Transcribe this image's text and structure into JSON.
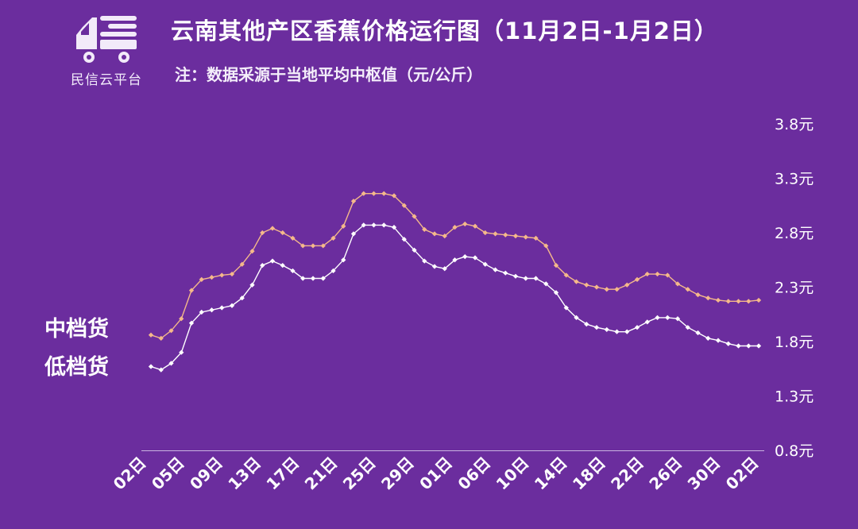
{
  "header": {
    "title": "云南其他产区香蕉价格运行图（11月2日-1月2日）",
    "subtitle": "注：数据采源于当地平均中枢值（元/公斤）"
  },
  "logo": {
    "text": "民信云平台",
    "icon": "truck-icon"
  },
  "colors": {
    "background": "#6b2d9e",
    "mid_series": "#f5b98a",
    "low_series": "#ffffff",
    "axis": "#c9b3e0"
  },
  "chart_data": {
    "type": "line",
    "title": "云南其他产区香蕉价格运行图（11月2日-1月2日）",
    "ylabel": "元/公斤",
    "ylim": [
      0.8,
      3.8
    ],
    "yticks": [
      0.8,
      1.3,
      1.8,
      2.3,
      2.8,
      3.3,
      3.8
    ],
    "ytick_labels": [
      "0.8元",
      "1.3元",
      "1.8元",
      "2.3元",
      "2.8元",
      "3.3元",
      "3.8元"
    ],
    "y_axis_position": "right",
    "grid": false,
    "xtick_labels": [
      "02日",
      "05日",
      "09日",
      "13日",
      "17日",
      "21日",
      "25日",
      "29日",
      "01日",
      "06日",
      "10日",
      "14日",
      "18日",
      "22日",
      "26日",
      "30日",
      "02日"
    ],
    "series_labels_position": "left",
    "series": [
      {
        "name": "中档货",
        "values": [
          1.86,
          1.83,
          1.9,
          2.01,
          2.27,
          2.37,
          2.39,
          2.41,
          2.42,
          2.51,
          2.63,
          2.8,
          2.84,
          2.8,
          2.75,
          2.68,
          2.68,
          2.68,
          2.75,
          2.86,
          3.09,
          3.16,
          3.16,
          3.16,
          3.14,
          3.05,
          2.95,
          2.83,
          2.79,
          2.77,
          2.85,
          2.88,
          2.86,
          2.8,
          2.79,
          2.78,
          2.77,
          2.76,
          2.75,
          2.68,
          2.5,
          2.41,
          2.35,
          2.32,
          2.3,
          2.28,
          2.28,
          2.32,
          2.37,
          2.42,
          2.42,
          2.41,
          2.33,
          2.28,
          2.23,
          2.2,
          2.18,
          2.17,
          2.17,
          2.17,
          2.18
        ]
      },
      {
        "name": "低档货",
        "values": [
          1.57,
          1.54,
          1.6,
          1.7,
          1.97,
          2.07,
          2.09,
          2.11,
          2.13,
          2.2,
          2.32,
          2.5,
          2.54,
          2.5,
          2.45,
          2.38,
          2.38,
          2.38,
          2.45,
          2.55,
          2.79,
          2.87,
          2.87,
          2.87,
          2.85,
          2.74,
          2.64,
          2.54,
          2.49,
          2.47,
          2.55,
          2.58,
          2.57,
          2.51,
          2.46,
          2.43,
          2.4,
          2.38,
          2.38,
          2.33,
          2.25,
          2.11,
          2.02,
          1.96,
          1.93,
          1.91,
          1.89,
          1.89,
          1.93,
          1.98,
          2.02,
          2.02,
          2.01,
          1.93,
          1.88,
          1.83,
          1.81,
          1.78,
          1.76,
          1.76,
          1.76
        ]
      }
    ]
  }
}
